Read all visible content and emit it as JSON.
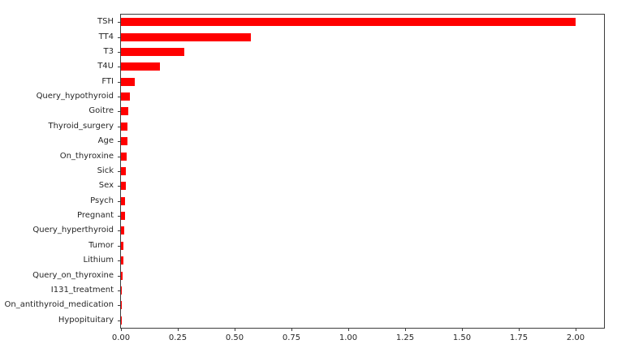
{
  "figure": {
    "background": "#ffffff"
  },
  "chart_data": {
    "type": "bar",
    "orientation": "horizontal",
    "title": "",
    "xlabel": "",
    "ylabel": "",
    "grid": false,
    "legend_position": "none",
    "bar_color": "#ff0000",
    "axis_color": "#3c3c3c",
    "tick_text_color": "#262626",
    "categories": [
      "TSH",
      "TT4",
      "T3",
      "T4U",
      "FTI",
      "Query_hypothyroid",
      "Goitre",
      "Thyroid_surgery",
      "Age",
      "On_thyroxine",
      "Sick",
      "Sex",
      "Psych",
      "Pregnant",
      "Query_hyperthyroid",
      "Tumor",
      "Lithium",
      "Query_on_thyroxine",
      "I131_treatment",
      "On_antithyroid_medication",
      "Hypopituitary"
    ],
    "values": [
      2.0,
      0.57,
      0.28,
      0.17,
      0.06,
      0.04,
      0.032,
      0.03,
      0.03,
      0.026,
      0.023,
      0.022,
      0.018,
      0.017,
      0.013,
      0.01,
      0.01,
      0.008,
      0.002,
      0.001,
      0.0005
    ],
    "x_tick_labels": [
      "0.00",
      "0.25",
      "0.50",
      "0.75",
      "1.00",
      "1.25",
      "1.50",
      "1.75",
      "2.00"
    ],
    "x_tick_values": [
      0,
      0.25,
      0.5,
      0.75,
      1.0,
      1.25,
      1.5,
      1.75,
      2.0
    ],
    "xlim": [
      0,
      2.125
    ]
  }
}
